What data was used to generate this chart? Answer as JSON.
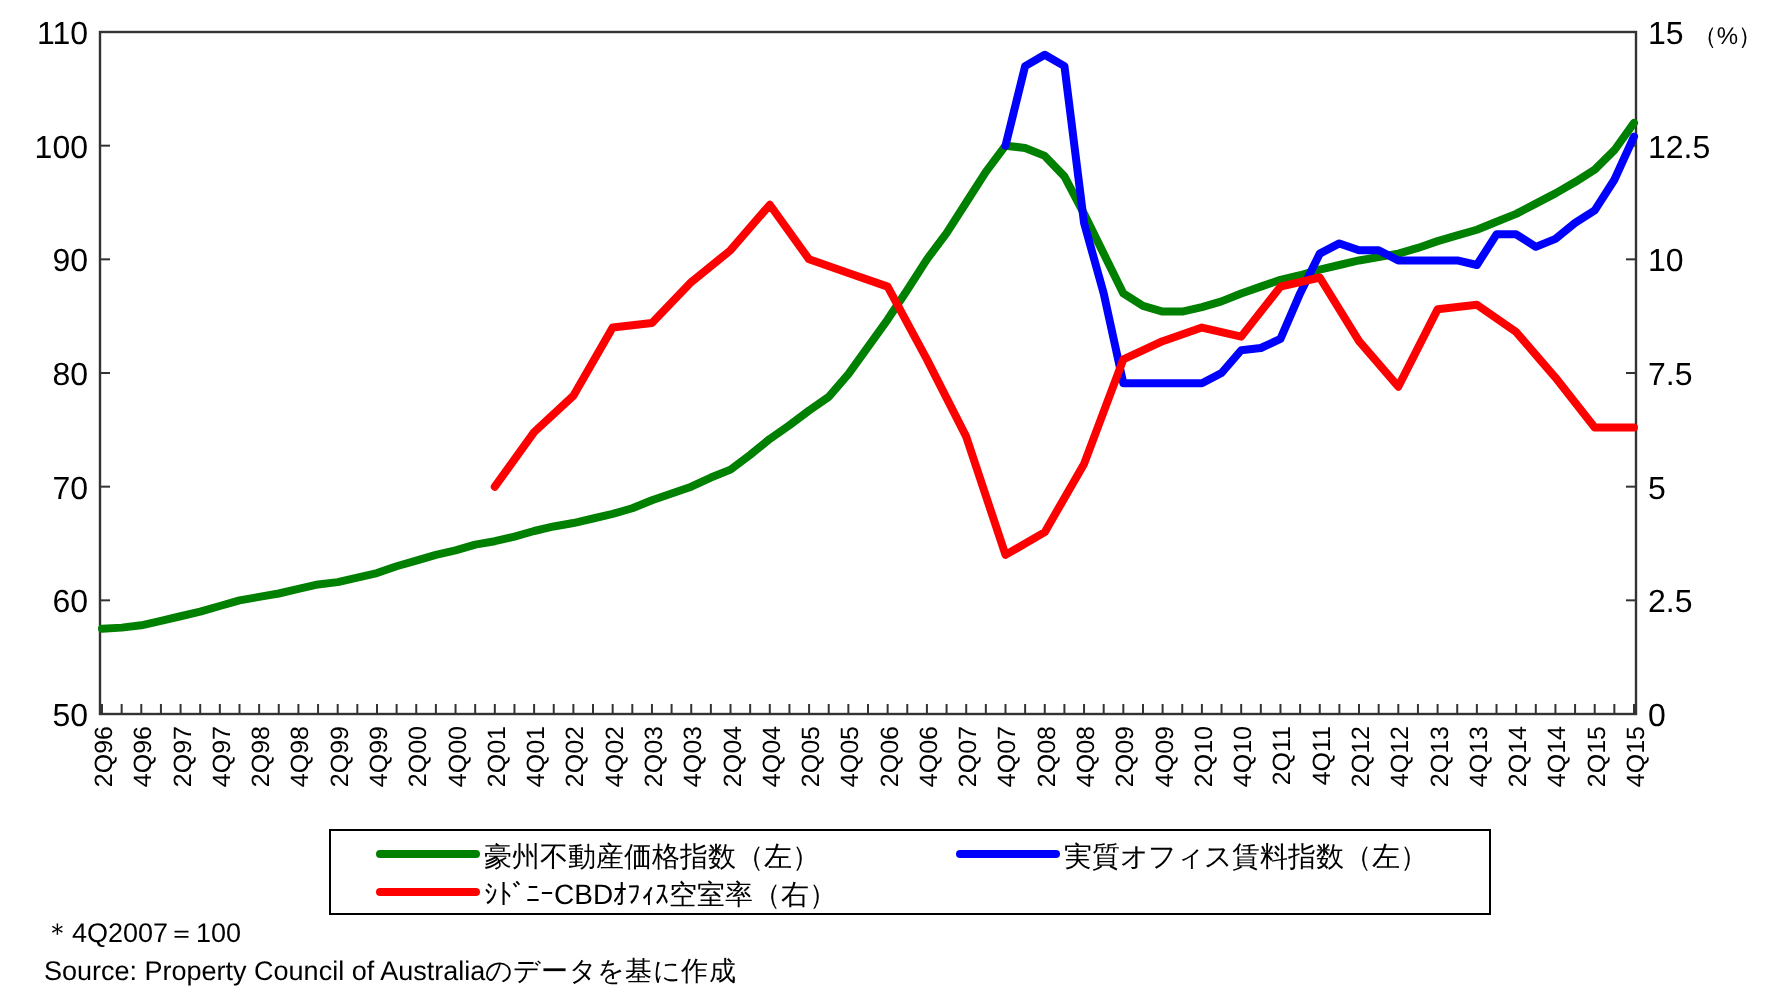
{
  "chart_data": {
    "type": "line",
    "categories": [
      "2Q96",
      null,
      "4Q96",
      null,
      "2Q97",
      null,
      "4Q97",
      null,
      "2Q98",
      null,
      "4Q98",
      null,
      "2Q99",
      null,
      "4Q99",
      null,
      "2Q00",
      null,
      "4Q00",
      null,
      "2Q01",
      null,
      "4Q01",
      null,
      "2Q02",
      null,
      "4Q02",
      null,
      "2Q03",
      null,
      "4Q03",
      null,
      "2Q04",
      null,
      "4Q04",
      null,
      "2Q05",
      null,
      "4Q05",
      null,
      "2Q06",
      null,
      "4Q06",
      null,
      "2Q07",
      null,
      "4Q07",
      null,
      "2Q08",
      null,
      "4Q08",
      null,
      "2Q09",
      null,
      "4Q09",
      null,
      "2Q10",
      null,
      "4Q10",
      null,
      "2Q11",
      null,
      "4Q11",
      null,
      "2Q12",
      null,
      "4Q12",
      null,
      "2Q13",
      null,
      "4Q13",
      null,
      "2Q14",
      null,
      "4Q14",
      null,
      "2Q15",
      null,
      "4Q15"
    ],
    "series": [
      {
        "name": "豪州不動産価格指数（左）",
        "color": "#008000",
        "values": [
          57.5,
          57.6,
          57.8,
          58.2,
          58.6,
          59.0,
          59.5,
          60.0,
          60.3,
          60.6,
          61.0,
          61.4,
          61.6,
          62.0,
          62.4,
          63.0,
          63.5,
          64.0,
          64.4,
          64.9,
          65.2,
          65.6,
          66.1,
          66.5,
          66.8,
          67.2,
          67.6,
          68.1,
          68.8,
          69.4,
          70.0,
          70.8,
          71.5,
          72.8,
          74.2,
          75.4,
          76.7,
          77.9,
          79.9,
          82.3,
          84.7,
          87.3,
          90.0,
          92.3,
          95.0,
          97.7,
          100.0,
          99.8,
          99.1,
          97.3,
          94.0,
          90.5,
          87.0,
          85.9,
          85.4,
          85.4,
          85.8,
          86.3,
          87.0,
          87.6,
          88.2,
          88.6,
          89.1,
          89.5,
          89.9,
          90.2,
          90.5,
          91.0,
          91.6,
          92.1,
          92.6,
          93.3,
          94.0,
          94.9,
          95.8,
          96.8,
          97.9,
          99.6,
          102.0
        ]
      },
      {
        "name": "実質オフィス賃料指数（左）",
        "color": "#0000ff",
        "values": [
          null,
          null,
          null,
          null,
          null,
          null,
          null,
          null,
          null,
          null,
          null,
          null,
          null,
          null,
          null,
          null,
          null,
          null,
          null,
          null,
          null,
          null,
          null,
          null,
          null,
          null,
          null,
          null,
          null,
          null,
          null,
          null,
          null,
          null,
          null,
          null,
          null,
          null,
          null,
          null,
          null,
          null,
          null,
          null,
          null,
          null,
          100.0,
          107.0,
          108.0,
          107.0,
          93.2,
          87.0,
          79.1,
          79.1,
          79.1,
          79.1,
          79.1,
          80.0,
          82.0,
          82.2,
          83.0,
          87.0,
          90.5,
          91.4,
          90.8,
          90.8,
          89.9,
          89.9,
          89.9,
          89.9,
          89.5,
          92.2,
          92.2,
          91.1,
          91.8,
          93.2,
          94.3,
          97.0,
          100.8
        ]
      },
      {
        "name": "ｼﾄﾞﾆｰCBDｵﾌｨｽ空室率（右）",
        "color": "#ff0000",
        "axis": "y2",
        "values": [
          null,
          null,
          null,
          null,
          null,
          null,
          null,
          null,
          null,
          null,
          null,
          null,
          null,
          null,
          null,
          null,
          null,
          null,
          null,
          null,
          5.0,
          null,
          6.2,
          null,
          7.0,
          null,
          8.5,
          null,
          8.6,
          null,
          9.5,
          null,
          10.2,
          null,
          11.2,
          null,
          10.0,
          null,
          9.7,
          null,
          9.4,
          null,
          7.8,
          null,
          6.1,
          null,
          3.5,
          null,
          4.0,
          null,
          5.5,
          null,
          7.8,
          null,
          8.2,
          null,
          8.5,
          null,
          8.3,
          null,
          9.4,
          null,
          9.6,
          null,
          8.2,
          null,
          7.2,
          null,
          8.9,
          null,
          9.0,
          null,
          8.4,
          null,
          7.4,
          null,
          6.3,
          null,
          6.3
        ]
      }
    ],
    "ylim": [
      50,
      110
    ],
    "yticks": [
      50,
      60,
      70,
      80,
      90,
      100,
      110
    ],
    "y2lim": [
      0,
      15
    ],
    "y2ticks": [
      0,
      2.5,
      5,
      7.5,
      10,
      12.5,
      15
    ],
    "y2label": "（%）",
    "legend": "bottom",
    "annotations": [
      "＊4Q2007＝100",
      "Source: Property Council of Australiaのデータを基に作成"
    ]
  }
}
